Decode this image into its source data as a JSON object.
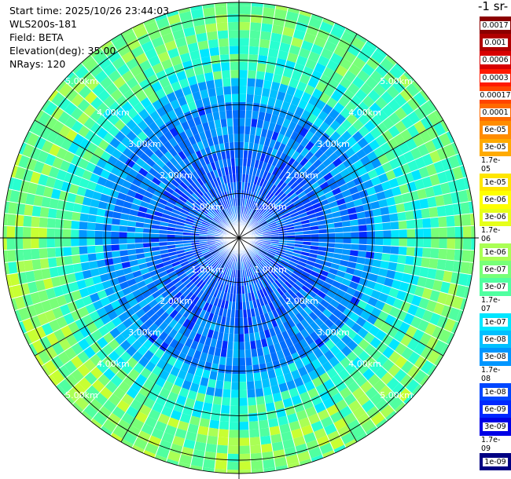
{
  "info": {
    "start_time": "Start time: 2025/10/26 23:44:03",
    "instrument": "WLS200s-181",
    "field": "Field: BETA",
    "elevation": "Elevation(deg): 35.00",
    "nrays": "NRays: 120"
  },
  "colorbar": {
    "title": "-1 sr-",
    "labels": [
      "0.0017",
      "0.001",
      "0.0006",
      "0.0003",
      "0.00017",
      "0.0001",
      "6e-05",
      "3e-05",
      "1.7e-05",
      "1e-05",
      "6e-06",
      "3e-06",
      "1.7e-06",
      "1e-06",
      "6e-07",
      "3e-07",
      "1.7e-07",
      "1e-07",
      "6e-08",
      "3e-08",
      "1.7e-08",
      "1e-08",
      "6e-09",
      "3e-09",
      "1.7e-09",
      "1e-09"
    ],
    "colors": [
      "#8b0000",
      "#b00000",
      "#d80000",
      "#ff1a00",
      "#ff4500",
      "#ff6a00",
      "#ff8c00",
      "#ffaa00",
      "#ffc800",
      "#ffe600",
      "#ffff00",
      "#e6ff1a",
      "#c8ff32",
      "#aaff55",
      "#78ff78",
      "#50ffa0",
      "#28ffd0",
      "#00e6ff",
      "#00c0ff",
      "#0096ff",
      "#006eff",
      "#0046ff",
      "#0028ff",
      "#0000e6",
      "#0000b4",
      "#000082"
    ]
  },
  "chart_data": {
    "type": "heatmap",
    "projection": "polar-ppi",
    "n_rays": 120,
    "range_rings_km": [
      1.0,
      2.0,
      3.0,
      4.0,
      5.0
    ],
    "ring_labels": [
      "1.00km",
      "2.00km",
      "3.00km",
      "4.00km",
      "5.00km"
    ],
    "max_range_km": 5.3,
    "grid_spokes_deg": [
      0,
      30,
      60,
      90,
      120,
      150,
      180,
      210,
      240,
      270,
      300,
      330
    ],
    "pattern_by_range": [
      {
        "range_km": [
          0.0,
          0.5
        ],
        "beta": "1e-08"
      },
      {
        "range_km": [
          0.5,
          2.0
        ],
        "beta": "1e-08"
      },
      {
        "range_km": [
          2.0,
          3.0
        ],
        "beta": "1.7e-08"
      },
      {
        "range_km": [
          3.0,
          3.6
        ],
        "beta": "3e-08"
      },
      {
        "range_km": [
          3.6,
          4.3
        ],
        "beta": "1.7e-07"
      },
      {
        "range_km": [
          4.3,
          5.3
        ],
        "beta": "1e-06"
      }
    ]
  }
}
